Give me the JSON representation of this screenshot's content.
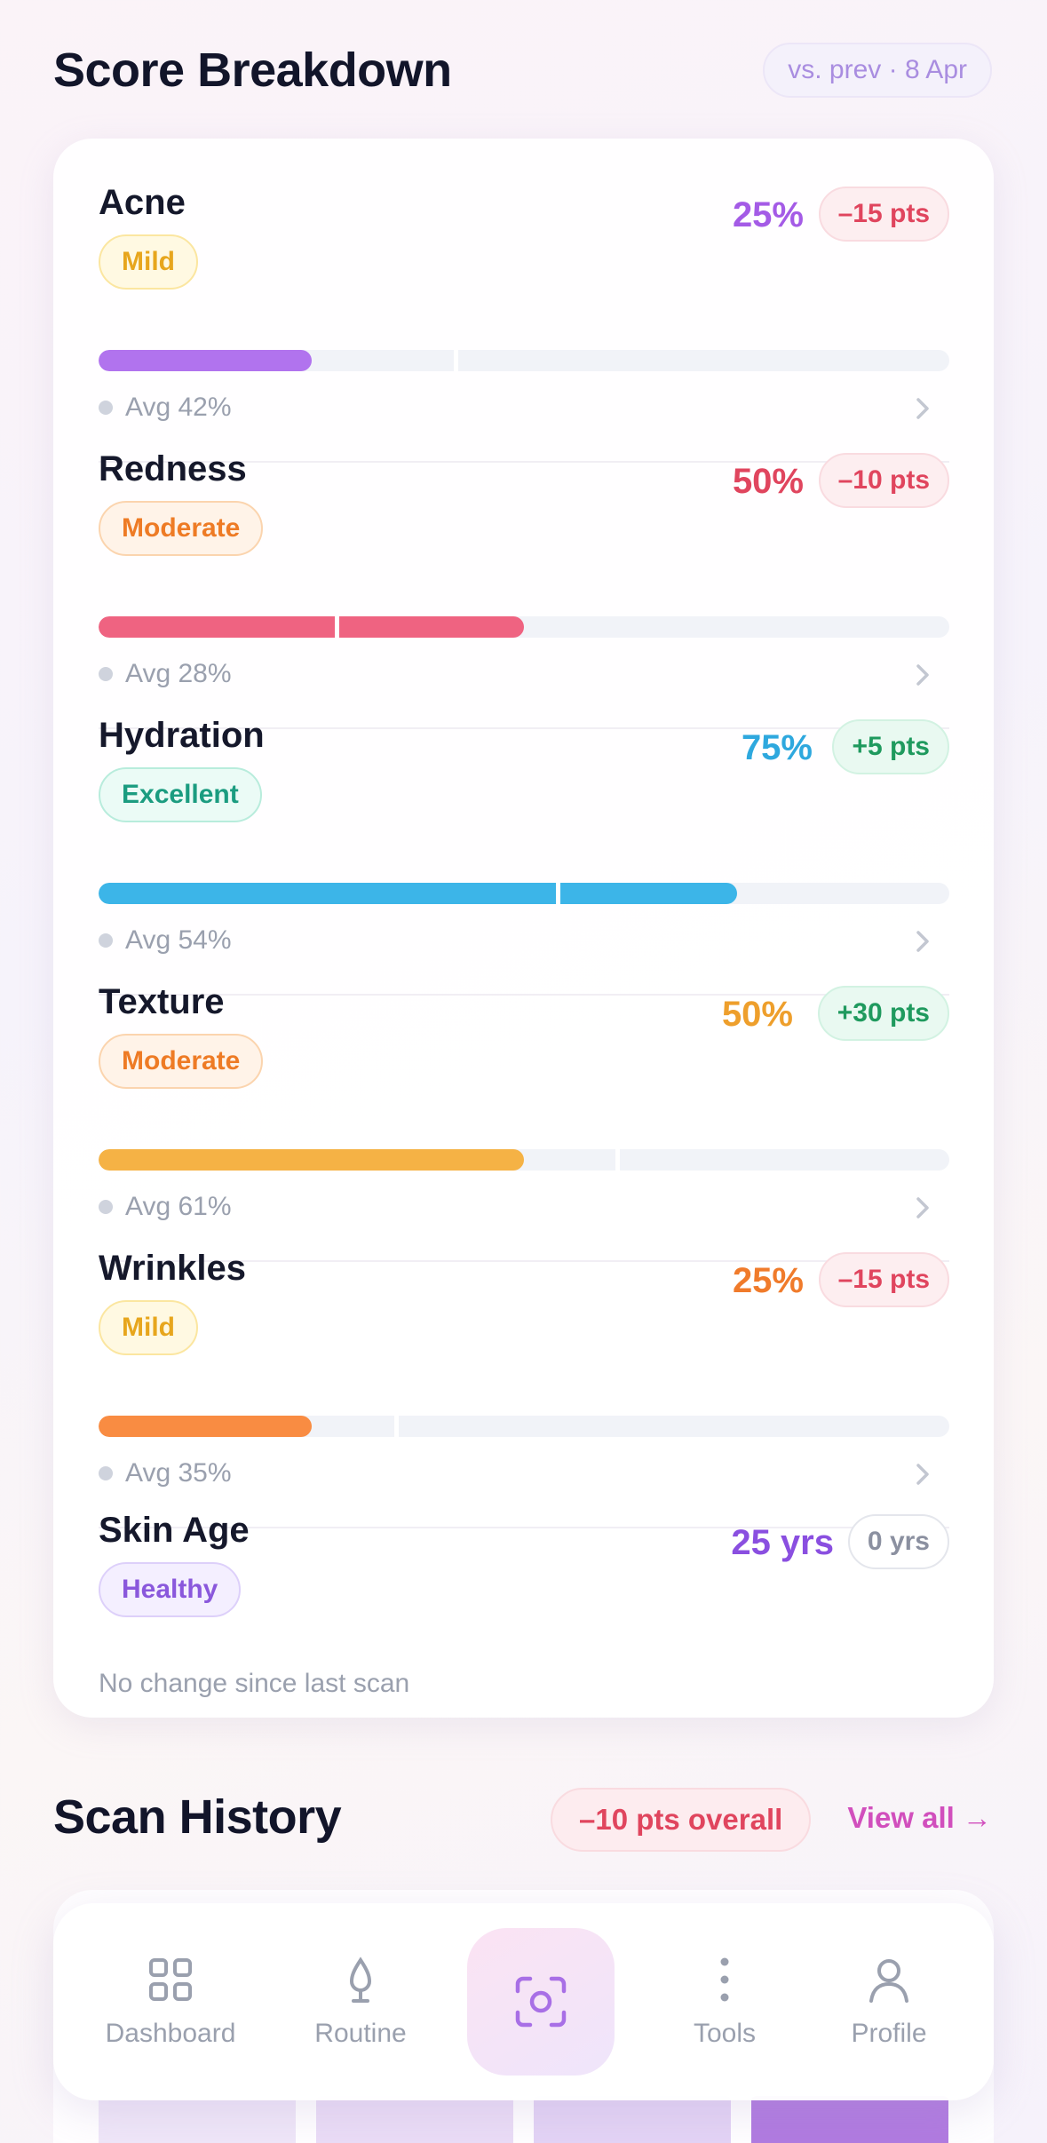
{
  "breakdown": {
    "title": "Score Breakdown",
    "compare_label": "vs. prev · 8 Apr",
    "metrics": [
      {
        "name": "Acne",
        "badge": "Mild",
        "badge_kind": "mild",
        "percent": "25%",
        "value": 25,
        "color": "#b173ee",
        "pct_color": "#a45be6",
        "delta": "–15 pts",
        "delta_kind": "neg",
        "avg_label": "Avg 42%",
        "avg": 42
      },
      {
        "name": "Redness",
        "badge": "Moderate",
        "badge_kind": "moderate",
        "percent": "50%",
        "value": 50,
        "color": "#ef6381",
        "pct_color": "#e0455e",
        "delta": "–10 pts",
        "delta_kind": "neg",
        "avg_label": "Avg 28%",
        "avg": 28
      },
      {
        "name": "Hydration",
        "badge": "Excellent",
        "badge_kind": "excellent",
        "percent": "75%",
        "value": 75,
        "color": "#3cb5e8",
        "pct_color": "#2ea8de",
        "delta": "+5 pts",
        "delta_kind": "pos",
        "avg_label": "Avg 54%",
        "avg": 54
      },
      {
        "name": "Texture",
        "badge": "Moderate",
        "badge_kind": "moderate",
        "percent": "50%",
        "value": 50,
        "color": "#f5b245",
        "pct_color": "#ee9f2c",
        "delta": "+30 pts",
        "delta_kind": "pos",
        "avg_label": "Avg 61%",
        "avg": 61
      },
      {
        "name": "Wrinkles",
        "badge": "Mild",
        "badge_kind": "mild",
        "percent": "25%",
        "value": 25,
        "color": "#f98c42",
        "pct_color": "#f07b2b",
        "delta": "–15 pts",
        "delta_kind": "neg",
        "avg_label": "Avg 35%",
        "avg": 35
      }
    ],
    "skin_age": {
      "name": "Skin Age",
      "badge": "Healthy",
      "value": "25 yrs",
      "delta": "0 yrs",
      "note": "No change since last scan"
    }
  },
  "history": {
    "title": "Scan History",
    "overall": "–10 pts overall",
    "view_all": "View all →"
  },
  "nav": {
    "dashboard": "Dashboard",
    "routine": "Routine",
    "tools": "Tools",
    "profile": "Profile"
  },
  "badge_styles": {
    "mild": {
      "bg": "#fff9e2",
      "border": "#fbe6a0",
      "color": "#e7a61d"
    },
    "moderate": {
      "bg": "#fff3e8",
      "border": "#fbd4ae",
      "color": "#ee7b25"
    },
    "excellent": {
      "bg": "#ebfbf6",
      "border": "#b8ecdc",
      "color": "#1b9c80"
    },
    "healthy": {
      "bg": "#f4efff",
      "border": "#ddd0fa",
      "color": "#8a58dc"
    }
  }
}
